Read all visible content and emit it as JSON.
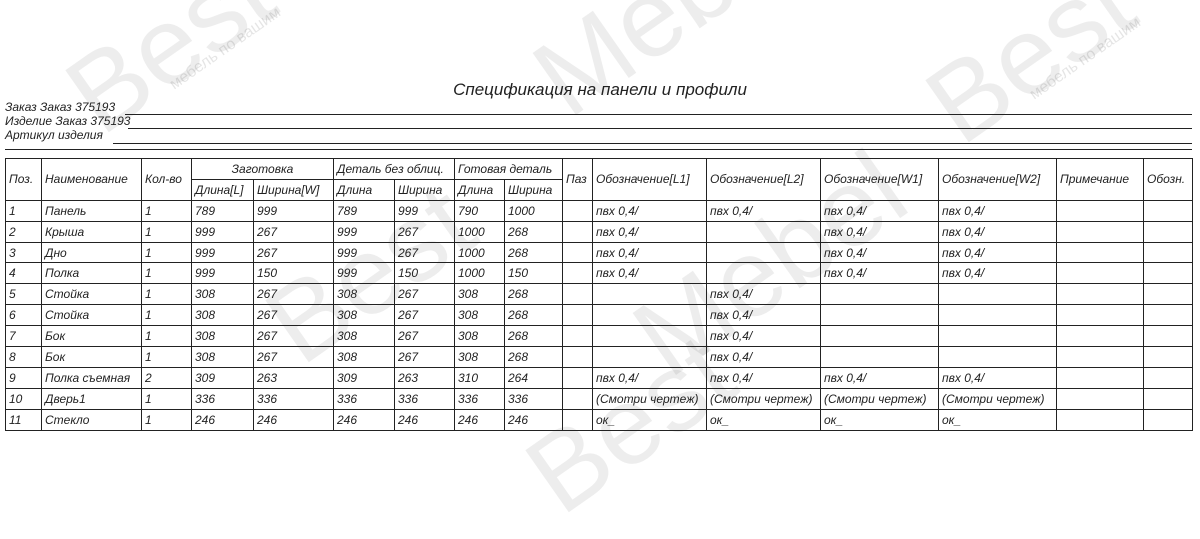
{
  "watermark": {
    "logo": "BestMebel",
    "tagline": "мебель по вашим идеям"
  },
  "title": "Спецификация на панели и профили",
  "info": [
    {
      "label": "Заказ",
      "value": "Заказ 375193"
    },
    {
      "label": "Изделие",
      "value": "Заказ 375193"
    },
    {
      "label": "Артикул изделия",
      "value": ""
    }
  ],
  "table": {
    "headers": {
      "pos": "Поз.",
      "name": "Наименование",
      "qty": "Кол-во",
      "blank": "Заготовка",
      "blank_len": "Длина[L]",
      "blank_wid": "Ширина[W]",
      "raw": "Деталь без облиц.",
      "raw_len": "Длина",
      "raw_wid": "Ширина",
      "done": "Готовая деталь",
      "done_len": "Длина",
      "done_wid": "Ширина",
      "groove": "Паз",
      "l1": "Обозначение[L1]",
      "l2": "Обозначение[L2]",
      "w1": "Обозначение[W1]",
      "w2": "Обозначение[W2]",
      "note": "Примечание",
      "mark": "Обозн."
    },
    "rows": [
      [
        "1",
        "Панель",
        "1",
        "789",
        "999",
        "789",
        "999",
        "790",
        "1000",
        "",
        "пвх 0,4/",
        "пвх 0,4/",
        "пвх 0,4/",
        "пвх 0,4/",
        "",
        ""
      ],
      [
        "2",
        "Крыша",
        "1",
        "999",
        "267",
        "999",
        "267",
        "1000",
        "268",
        "",
        "пвх 0,4/",
        "",
        "пвх 0,4/",
        "пвх 0,4/",
        "",
        ""
      ],
      [
        "3",
        "Дно",
        "1",
        "999",
        "267",
        "999",
        "267",
        "1000",
        "268",
        "",
        "пвх 0,4/",
        "",
        "пвх 0,4/",
        "пвх 0,4/",
        "",
        ""
      ],
      [
        "4",
        "Полка",
        "1",
        "999",
        "150",
        "999",
        "150",
        "1000",
        "150",
        "",
        "пвх 0,4/",
        "",
        "пвх 0,4/",
        "пвх 0,4/",
        "",
        ""
      ],
      [
        "5",
        "Стойка",
        "1",
        "308",
        "267",
        "308",
        "267",
        "308",
        "268",
        "",
        "",
        "пвх 0,4/",
        "",
        "",
        "",
        ""
      ],
      [
        "6",
        "Стойка",
        "1",
        "308",
        "267",
        "308",
        "267",
        "308",
        "268",
        "",
        "",
        "пвх 0,4/",
        "",
        "",
        "",
        ""
      ],
      [
        "7",
        "Бок",
        "1",
        "308",
        "267",
        "308",
        "267",
        "308",
        "268",
        "",
        "",
        "пвх 0,4/",
        "",
        "",
        "",
        ""
      ],
      [
        "8",
        "Бок",
        "1",
        "308",
        "267",
        "308",
        "267",
        "308",
        "268",
        "",
        "",
        "пвх 0,4/",
        "",
        "",
        "",
        ""
      ],
      [
        "9",
        "Полка съемная",
        "2",
        "309",
        "263",
        "309",
        "263",
        "310",
        "264",
        "",
        "пвх 0,4/",
        "пвх 0,4/",
        "пвх 0,4/",
        "пвх 0,4/",
        "",
        ""
      ],
      [
        "10",
        "Дверь1",
        "1",
        "336",
        "336",
        "336",
        "336",
        "336",
        "336",
        "",
        "(Смотри чертеж)",
        "(Смотри чертеж)",
        "(Смотри чертеж)",
        "(Смотри чертеж)",
        "",
        ""
      ],
      [
        "11",
        "Стекло",
        "1",
        "246",
        "246",
        "246",
        "246",
        "246",
        "246",
        "",
        "ок_",
        "ок_",
        "ок_",
        "ок_",
        "",
        ""
      ]
    ]
  }
}
